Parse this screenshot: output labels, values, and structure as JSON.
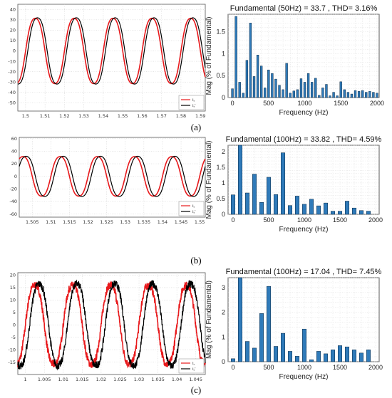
{
  "chart_data": [
    {
      "type": "line",
      "panel": "a",
      "caption": "(a)",
      "xlim": [
        1.496,
        1.5925
      ],
      "ylim": [
        -58,
        45
      ],
      "xticks": [
        "1.5",
        "1.51",
        "1.52",
        "1.53",
        "1.54",
        "1.55",
        "1.56",
        "1.57",
        "1.58",
        "1.59"
      ],
      "xtick_values": [
        1.5,
        1.51,
        1.52,
        1.53,
        1.54,
        1.55,
        1.56,
        1.57,
        1.58,
        1.59
      ],
      "yticks": [
        -50,
        -40,
        -30,
        -20,
        -10,
        0,
        10,
        20,
        30,
        40
      ],
      "grid": true,
      "legend": {
        "placement": "bottom-right",
        "entries": [
          "iₐ",
          "iₐ′"
        ]
      },
      "series": [
        {
          "name": "iₐ",
          "color": "#e8191c",
          "amplitude": 33.5,
          "frequency_hz": 50,
          "phase_deg": 0
        },
        {
          "name": "iₐ′",
          "color": "#000000",
          "amplitude": 34,
          "frequency_hz": 50,
          "phase_deg": -20
        }
      ]
    },
    {
      "type": "line",
      "panel": "b",
      "caption": "(b)",
      "xlim": [
        1.5015,
        1.5515
      ],
      "ylim": [
        -65,
        62
      ],
      "xticks": [
        "1.505",
        "1.51",
        "1.515",
        "1.52",
        "1.525",
        "1.53",
        "1.535",
        "1.54",
        "1.545",
        "1.55"
      ],
      "xtick_values": [
        1.505,
        1.51,
        1.515,
        1.52,
        1.525,
        1.53,
        1.535,
        1.54,
        1.545,
        1.55
      ],
      "yticks": [
        -60,
        -40,
        -20,
        0,
        20,
        40,
        60
      ],
      "grid": true,
      "legend": {
        "placement": "bottom-right",
        "entries": [
          "iₐ",
          "iₐ′"
        ]
      },
      "series": [
        {
          "name": "iₐ",
          "color": "#e8191c",
          "amplitude": 33.5,
          "frequency_hz": 100,
          "phase_deg": 0
        },
        {
          "name": "iₐ′",
          "color": "#000000",
          "amplitude": 34,
          "frequency_hz": 100,
          "phase_deg": -30
        }
      ]
    },
    {
      "type": "line",
      "panel": "c",
      "caption": "(c)",
      "xlim": [
        0.998,
        1.0475
      ],
      "ylim": [
        -20,
        21
      ],
      "xticks": [
        "1",
        "1.005",
        "1.01",
        "1.015",
        "1.02",
        "1.025",
        "1.03",
        "1.035",
        "1.04",
        "1.045"
      ],
      "xtick_values": [
        1,
        1.005,
        1.01,
        1.015,
        1.02,
        1.025,
        1.03,
        1.035,
        1.04,
        1.045
      ],
      "yticks": [
        -15,
        -10,
        -5,
        0,
        5,
        10,
        15,
        20
      ],
      "grid": true,
      "legend": {
        "placement": "bottom-right",
        "entries": [
          "iₐ",
          "iₐ′"
        ]
      },
      "series": [
        {
          "name": "iₐ",
          "color": "#e8191c",
          "amplitude": 17,
          "frequency_hz": 100,
          "phase_deg": 0,
          "noisy": true
        },
        {
          "name": "iₐ′",
          "color": "#000000",
          "amplitude": 17.5,
          "frequency_hz": 100,
          "phase_deg": -40,
          "noisy": true
        }
      ]
    },
    {
      "type": "bar",
      "panel": "a",
      "title": "Fundamental (50Hz) = 33.7 , THD= 3.16%",
      "xlabel": "Frequency (Hz)",
      "ylabel": "Mag (% of Fundamental)",
      "xlim": [
        -60,
        2030
      ],
      "ylim": [
        0,
        1.9
      ],
      "xticks": [
        0,
        500,
        1000,
        1500,
        2000
      ],
      "yticks": [
        0,
        0.5,
        1,
        1.5
      ],
      "bar_width_hz": 28,
      "x": [
        0,
        50,
        100,
        150,
        200,
        250,
        300,
        350,
        400,
        450,
        500,
        550,
        600,
        650,
        700,
        750,
        800,
        850,
        900,
        950,
        1000,
        1050,
        1100,
        1150,
        1200,
        1250,
        1300,
        1350,
        1400,
        1450,
        1500,
        1550,
        1600,
        1650,
        1700,
        1750,
        1800,
        1850,
        1900,
        1950,
        2000
      ],
      "values": [
        0.2,
        1.85,
        0.35,
        0.1,
        0.85,
        1.7,
        0.48,
        0.97,
        0.72,
        0.22,
        0.63,
        0.55,
        0.42,
        0.28,
        0.18,
        0.78,
        0.1,
        0.15,
        0.18,
        0.43,
        0.35,
        0.55,
        0.35,
        0.44,
        0.05,
        0.22,
        0.3,
        0.04,
        0.12,
        0.04,
        0.36,
        0.18,
        0.12,
        0.08,
        0.16,
        0.14,
        0.16,
        0.12,
        0.14,
        0.12,
        0.1
      ],
      "color": "#2f7ab9",
      "grid": true
    },
    {
      "type": "bar",
      "panel": "b",
      "title": "Fundamental (100Hz) = 33.82 , THD= 4.59%",
      "xlabel": "Frequency (Hz)",
      "ylabel": "Mag (% of Fundamental)",
      "xlim": [
        -70,
        2050
      ],
      "ylim": [
        0,
        2.2
      ],
      "xticks": [
        0,
        500,
        1000,
        1500,
        2000
      ],
      "yticks": [
        0,
        0.5,
        1,
        1.5,
        2
      ],
      "bar_width_hz": 55,
      "x": [
        0,
        100,
        200,
        300,
        400,
        500,
        600,
        700,
        800,
        900,
        1000,
        1100,
        1200,
        1300,
        1400,
        1500,
        1600,
        1700,
        1800,
        1900
      ],
      "values": [
        0.62,
        2.2,
        0.68,
        1.28,
        0.38,
        1.18,
        0.63,
        1.96,
        0.28,
        0.58,
        0.32,
        0.48,
        0.27,
        0.36,
        0.1,
        0.1,
        0.42,
        0.2,
        0.12,
        0.1
      ],
      "color": "#2f7ab9",
      "grid": true
    },
    {
      "type": "bar",
      "panel": "c",
      "title": "Fundamental (100Hz) = 17.04 , THD= 7.45%",
      "xlabel": "Frequency (Hz)",
      "ylabel": "Mag (% of Fundamental)",
      "xlim": [
        -70,
        2050
      ],
      "ylim": [
        0,
        3.4
      ],
      "xticks": [
        0,
        500,
        1000,
        1500,
        2000
      ],
      "yticks": [
        0,
        1,
        2,
        3
      ],
      "bar_width_hz": 55,
      "x": [
        0,
        100,
        200,
        300,
        400,
        500,
        600,
        700,
        800,
        900,
        1000,
        1100,
        1200,
        1300,
        1400,
        1500,
        1600,
        1700,
        1800,
        1900
      ],
      "values": [
        0.12,
        3.4,
        0.82,
        0.55,
        1.95,
        3.05,
        0.62,
        1.15,
        0.42,
        0.22,
        1.32,
        0.08,
        0.42,
        0.32,
        0.48,
        0.65,
        0.6,
        0.48,
        0.35,
        0.48
      ],
      "color": "#2f7ab9",
      "grid": true
    }
  ]
}
